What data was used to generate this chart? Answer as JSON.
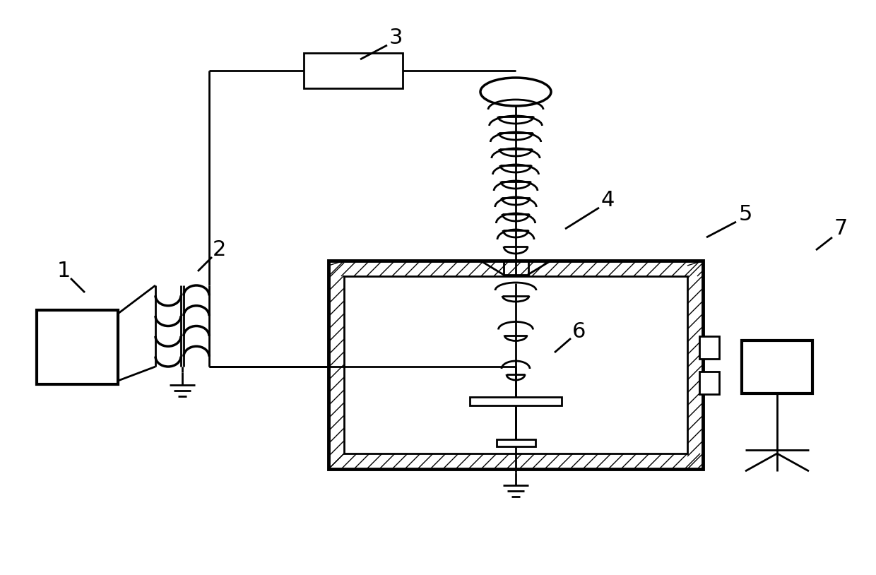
{
  "bg_color": "#ffffff",
  "line_color": "#000000",
  "lw": 2.0,
  "fig_width": 12.4,
  "fig_height": 8.14
}
